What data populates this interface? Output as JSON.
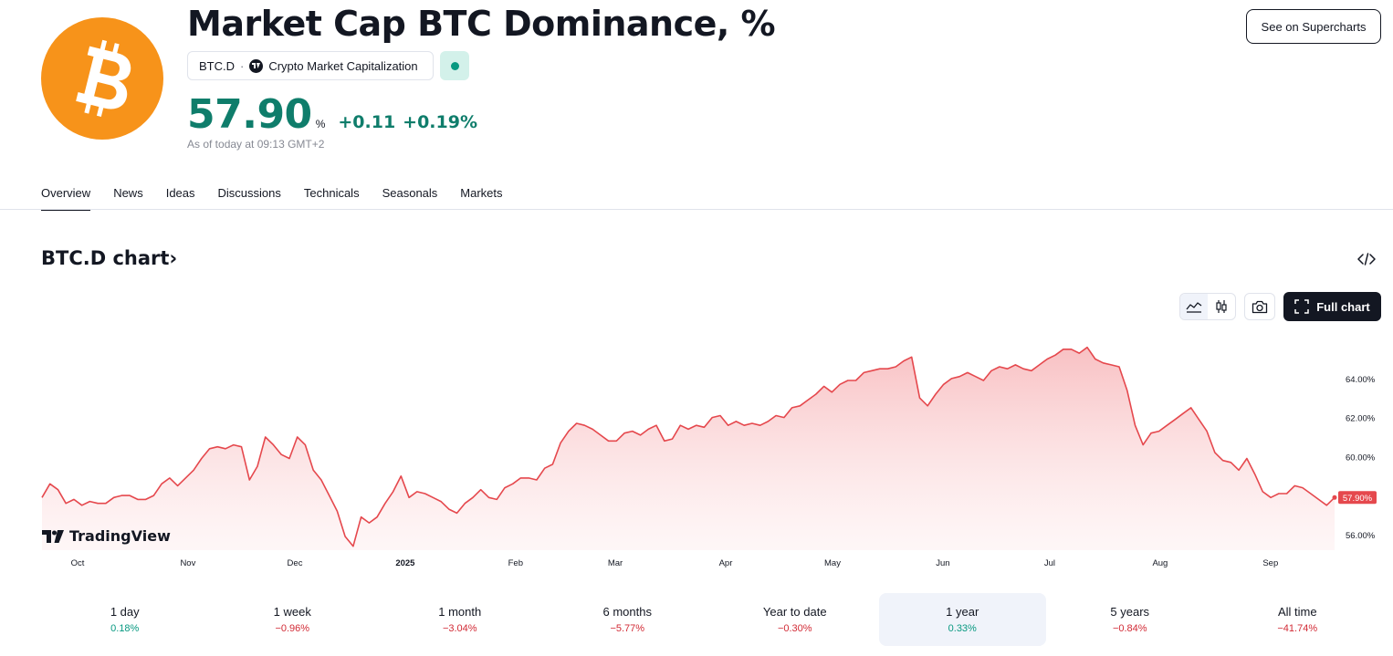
{
  "header": {
    "title": "Market Cap BTC Dominance, %",
    "ticker": "BTC.D",
    "separator": "·",
    "source": "Crypto Market Capitalization",
    "price": "57.90",
    "unit": "%",
    "change": "+0.11",
    "change_pct": "+0.19%",
    "as_of": "As of today at 09:13 GMT+2",
    "logo_icon": "bitcoin-logo",
    "status_icon": "market-status-dot",
    "supercharts_button": "See on Supercharts"
  },
  "tabs": [
    {
      "label": "Overview",
      "active": true
    },
    {
      "label": "News",
      "active": false
    },
    {
      "label": "Ideas",
      "active": false
    },
    {
      "label": "Discussions",
      "active": false
    },
    {
      "label": "Technicals",
      "active": false
    },
    {
      "label": "Seasonals",
      "active": false
    },
    {
      "label": "Markets",
      "active": false
    }
  ],
  "chart_section": {
    "heading": "BTC.D chart",
    "chevron": "›",
    "full_chart_label": "Full chart",
    "watermark": "TradingView",
    "icons": [
      "embed-code-icon",
      "area-chart-icon",
      "candlestick-icon",
      "camera-icon",
      "fullscreen-icon",
      "tradingview-logo-icon"
    ]
  },
  "colors": {
    "accent_up": "#089981",
    "accent_down": "#d22b36",
    "line": "#e5484d",
    "bitcoin": "#f7931a"
  },
  "chart_data": {
    "type": "area",
    "x_tick_labels": [
      "Oct",
      "Nov",
      "Dec",
      "2025",
      "Feb",
      "Mar",
      "Apr",
      "May",
      "Jun",
      "Jul",
      "Aug",
      "Sep"
    ],
    "x_range": [
      "2024-09-21",
      "2025-09-19"
    ],
    "y_tick_labels": [
      "64.00%",
      "62.00%",
      "60.00%",
      "56.00%"
    ],
    "y_ticks": [
      64,
      62,
      60,
      56
    ],
    "ylim": [
      55.2,
      66.8
    ],
    "last_value_label": "57.90%",
    "last_value": 57.9,
    "series": [
      {
        "values": [
          57.9,
          58.6,
          58.3,
          57.6,
          57.8,
          57.5,
          57.7,
          57.6,
          57.6,
          57.9,
          58.0,
          58.0,
          57.8,
          57.8,
          58.0,
          58.6,
          58.9,
          58.5,
          58.9,
          59.3,
          59.9,
          60.4,
          60.5,
          60.4,
          60.6,
          60.5,
          58.8,
          59.5,
          61.0,
          60.6,
          60.1,
          59.9,
          61.0,
          60.6,
          59.3,
          58.8,
          58.0,
          57.2,
          55.9,
          55.4,
          56.9,
          56.6,
          56.9,
          57.6,
          58.2,
          59.0,
          57.9,
          58.2,
          58.1,
          57.9,
          57.7,
          57.3,
          57.1,
          57.6,
          57.9,
          58.3,
          57.9,
          57.8,
          58.4,
          58.6,
          58.9,
          58.9,
          58.8,
          59.4,
          59.6,
          60.7,
          61.3,
          61.7,
          61.6,
          61.4,
          61.1,
          60.8,
          60.8,
          61.2,
          61.3,
          61.1,
          61.4,
          61.6,
          60.8,
          60.9,
          61.6,
          61.4,
          61.6,
          61.5,
          62.0,
          62.1,
          61.6,
          61.8,
          61.6,
          61.7,
          61.6,
          61.8,
          62.1,
          62.0,
          62.5,
          62.6,
          62.9,
          63.2,
          63.6,
          63.3,
          63.7,
          63.9,
          63.9,
          64.3,
          64.4,
          64.5,
          64.5,
          64.6,
          64.9,
          65.1,
          63.0,
          62.6,
          63.2,
          63.7,
          64.0,
          64.1,
          64.3,
          64.1,
          63.9,
          64.4,
          64.6,
          64.5,
          64.7,
          64.5,
          64.4,
          64.7,
          65.0,
          65.2,
          65.5,
          65.5,
          65.3,
          65.6,
          65.0,
          64.8,
          64.7,
          64.6,
          63.4,
          61.6,
          60.6,
          61.2,
          61.3,
          61.6,
          61.9,
          62.2,
          62.5,
          61.9,
          61.3,
          60.2,
          59.8,
          59.7,
          59.3,
          59.9,
          59.1,
          58.2,
          57.9,
          58.1,
          58.1,
          58.5,
          58.4,
          58.1,
          57.8,
          57.5,
          57.9
        ]
      }
    ]
  },
  "periods": [
    {
      "label": "1 day",
      "value": "0.18%",
      "dir": "up",
      "active": false
    },
    {
      "label": "1 week",
      "value": "−0.96%",
      "dir": "down",
      "active": false
    },
    {
      "label": "1 month",
      "value": "−3.04%",
      "dir": "down",
      "active": false
    },
    {
      "label": "6 months",
      "value": "−5.77%",
      "dir": "down",
      "active": false
    },
    {
      "label": "Year to date",
      "value": "−0.30%",
      "dir": "down",
      "active": false
    },
    {
      "label": "1 year",
      "value": "0.33%",
      "dir": "up",
      "active": true
    },
    {
      "label": "5 years",
      "value": "−0.84%",
      "dir": "down",
      "active": false
    },
    {
      "label": "All time",
      "value": "−41.74%",
      "dir": "down",
      "active": false
    }
  ]
}
